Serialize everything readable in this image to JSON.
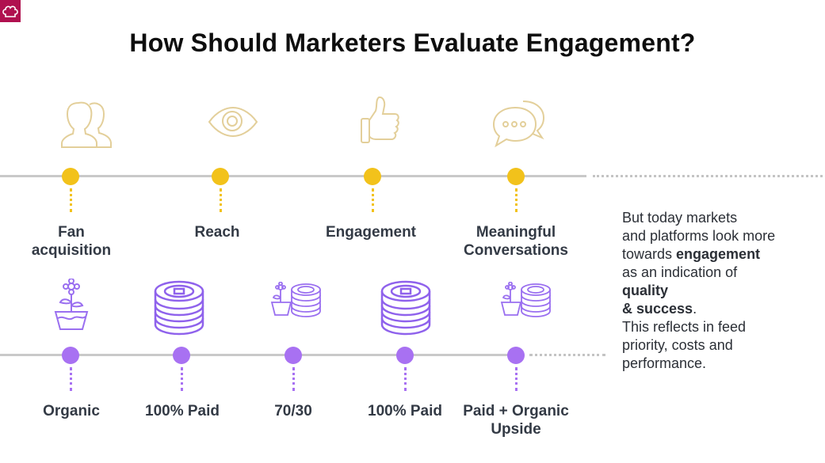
{
  "title": "How Should Marketers Evaluate Engagement?",
  "top_row": [
    {
      "icon": "people-icon",
      "label_lines": [
        "Fan",
        "acquisition"
      ]
    },
    {
      "icon": "eye-icon",
      "label_lines": [
        "Reach"
      ]
    },
    {
      "icon": "thumbs-up-icon",
      "label_lines": [
        "Engagement"
      ]
    },
    {
      "icon": "chat-bubbles-icon",
      "label_lines": [
        "Meaningful",
        "Conversations"
      ]
    }
  ],
  "bottom_row": [
    {
      "icon": "plant-pot-icon",
      "label_lines": [
        "Organic"
      ]
    },
    {
      "icon": "coin-stack-icon",
      "label_lines": [
        "100% Paid"
      ]
    },
    {
      "icon": "plant-and-coins-icon",
      "label_lines": [
        "70/30"
      ]
    },
    {
      "icon": "coin-stack-icon",
      "label_lines": [
        "100% Paid"
      ]
    },
    {
      "icon": "plant-and-coins-icon",
      "label_lines": [
        "Paid + Organic",
        "Upside"
      ]
    }
  ],
  "side_text": {
    "line1": "But today markets",
    "line2": "and platforms look more",
    "line3_pre": "towards ",
    "line3_bold": "engagement",
    "line4": "as an indication of",
    "line5_bold": "quality",
    "line6_bold": "& success",
    "line6_post": ".",
    "line7": "This reflects in feed",
    "line8": "priority, costs and",
    "line9": "performance."
  },
  "colors": {
    "accent_yellow": "#f2c21b",
    "accent_purple": "#a871f2",
    "icon_gold": "#e3cf9a",
    "brand": "#b0104f"
  }
}
